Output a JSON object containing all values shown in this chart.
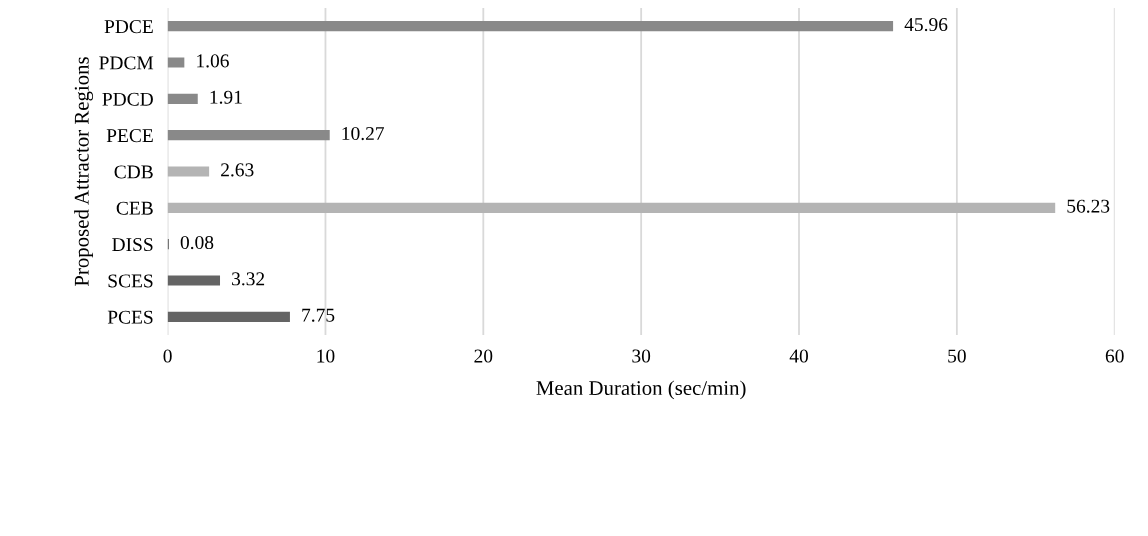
{
  "chart_data": {
    "type": "bar",
    "orientation": "horizontal",
    "xlabel": "Mean Duration (sec/min)",
    "ylabel": "Proposed Attractor Regions",
    "categories": [
      "PDCE",
      "PDCM",
      "PDCD",
      "PECE",
      "CDB",
      "CEB",
      "DISS",
      "SCES",
      "PCES"
    ],
    "values": [
      45.96,
      1.06,
      1.91,
      10.27,
      2.63,
      56.23,
      0.08,
      3.32,
      7.75
    ],
    "colors": [
      "#898989",
      "#898989",
      "#898989",
      "#898989",
      "#b4b4b4",
      "#b4b4b4",
      "#646464",
      "#646464",
      "#646464"
    ],
    "xlim": [
      0,
      60
    ],
    "xticks": [
      0,
      10,
      20,
      30,
      40,
      50,
      60
    ],
    "grid": "x",
    "data_labels": true,
    "legend": false
  }
}
